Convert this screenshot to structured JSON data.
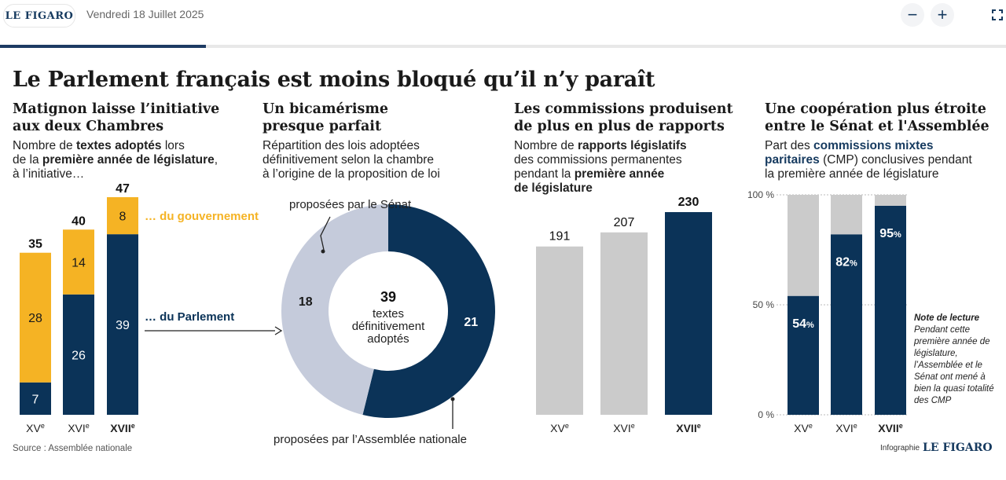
{
  "header": {
    "logo": "LE FIGARO",
    "date": "Vendredi 18 Juillet 2025",
    "zoom_out_icon": "minus-icon",
    "zoom_in_icon": "plus-icon",
    "fullscreen_icon": "fullscreen-icon",
    "reading_progress": 0.205
  },
  "title": "Le Parlement français est moins bloqué qu’il n’y paraît",
  "sections": {
    "s1": {
      "title": "Matignon laisse l’initiative\naux deux Chambres",
      "sub_a": "Nombre de ",
      "sub_b": "textes adoptés",
      "sub_c": " lors",
      "sub_d": "de la ",
      "sub_e": "première année de législature",
      "sub_f": ",",
      "sub_g": "à l’initiative…"
    },
    "s2": {
      "title": "Un bicamérisme\npresque parfait",
      "sub_1": "Répartition des lois adoptées",
      "sub_2": "définitivement selon la chambre",
      "sub_3": "à l’origine de la proposition de loi"
    },
    "s3": {
      "title": "Les commissions produisent\nde plus en plus de rapports",
      "sub_a": "Nombre de ",
      "sub_b": "rapports législatifs",
      "sub_c": "des commissions permanentes",
      "sub_d": "pendant la ",
      "sub_e": "première année",
      "sub_f": "de législature"
    },
    "s4": {
      "title": "Une coopération plus étroite\nentre le Sénat et l'Assemblée",
      "sub_a": "Part des ",
      "sub_b": "commissions mixtes",
      "sub_c": "paritaires",
      "sub_d": " (CMP) conclusives pendant",
      "sub_e": "la première année de législature"
    }
  },
  "note": {
    "title": "Note de lecture",
    "text": "Pendant cette première année de législature, l’Assemblée et le Sénat ont mené à bien la quasi totalité des CMP"
  },
  "source": "Source : Assemblée nationale",
  "credit": {
    "label": "Infographie",
    "brand": "LE FIGARO"
  },
  "colors": {
    "navy": "#0b3358",
    "yellow": "#f5b324",
    "grey": "#cbcbcb",
    "light": "#c5cbdb"
  },
  "chart_data": [
    {
      "type": "bar",
      "stacked": true,
      "categories": [
        "XV",
        "XVI",
        "XVII"
      ],
      "category_suffix": "e",
      "series": [
        {
          "name": "… du Parlement",
          "values": [
            7,
            26,
            39
          ],
          "color": "#0b3358"
        },
        {
          "name": "… du gouvernement",
          "values": [
            28,
            14,
            8
          ],
          "color": "#f5b324"
        }
      ],
      "totals": [
        35,
        40,
        47
      ],
      "ylim": [
        0,
        47
      ]
    },
    {
      "type": "pie",
      "donut": true,
      "center_value": "39",
      "center_label": [
        "textes",
        "définitivement",
        "adoptés"
      ],
      "slices": [
        {
          "name": "proposées par l’Assemblée nationale",
          "value": 21,
          "color": "#0b3358"
        },
        {
          "name": "proposées par le Sénat",
          "value": 18,
          "color": "#c5cbdb"
        }
      ]
    },
    {
      "type": "bar",
      "categories": [
        "XV",
        "XVI",
        "XVII"
      ],
      "category_suffix": "e",
      "values": [
        191,
        207,
        230
      ],
      "colors": [
        "#cbcbcb",
        "#cbcbcb",
        "#0b3358"
      ],
      "ylim": [
        0,
        230
      ]
    },
    {
      "type": "bar",
      "stacked": true,
      "categories": [
        "XV",
        "XVI",
        "XVII"
      ],
      "category_suffix": "e",
      "values": [
        54,
        82,
        95
      ],
      "value_labels": [
        "54",
        "82",
        "95"
      ],
      "ylim": [
        0,
        100
      ],
      "yticks": [
        0,
        50,
        100
      ],
      "ytick_labels": [
        "0 %",
        "50 %",
        "100 %"
      ],
      "grid": true
    }
  ]
}
